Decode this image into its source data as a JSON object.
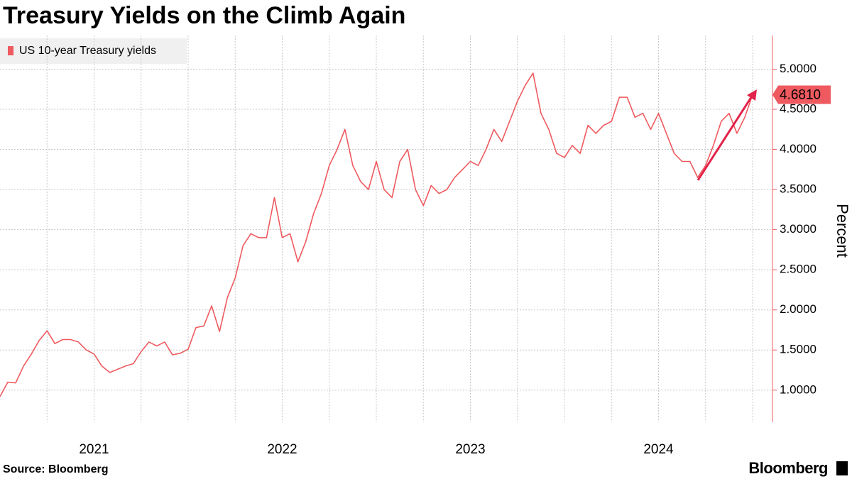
{
  "chart_data": {
    "type": "line",
    "title": "Treasury Yields on the Climb Again",
    "source": "Source: Bloomberg",
    "brand": "Bloomberg",
    "y_label": "Percent",
    "categories": [
      null,
      null,
      null,
      null,
      null,
      null,
      null,
      null,
      null,
      null,
      null,
      null,
      "2021",
      null,
      null,
      null,
      null,
      null,
      null,
      null,
      null,
      null,
      null,
      null,
      null,
      null,
      null,
      null,
      null,
      null,
      null,
      null,
      null,
      null,
      null,
      null,
      "2022",
      null,
      null,
      null,
      null,
      null,
      null,
      null,
      null,
      null,
      null,
      null,
      null,
      null,
      null,
      null,
      null,
      null,
      null,
      null,
      null,
      null,
      null,
      null,
      "2023",
      null,
      null,
      null,
      null,
      null,
      null,
      null,
      null,
      null,
      null,
      null,
      null,
      null,
      null,
      null,
      null,
      null,
      null,
      null,
      null,
      null,
      null,
      null,
      "2024",
      null,
      null,
      null,
      null,
      null,
      null,
      null,
      null,
      null,
      null,
      null,
      null
    ],
    "series": [
      {
        "name": "US 10-year Treasury yields",
        "color": "#ee5a5f",
        "values": [
          0.92,
          1.1,
          1.09,
          1.3,
          1.45,
          1.62,
          1.74,
          1.58,
          1.63,
          1.63,
          1.6,
          1.5,
          1.45,
          1.3,
          1.22,
          1.26,
          1.3,
          1.33,
          1.48,
          1.6,
          1.55,
          1.6,
          1.44,
          1.46,
          1.51,
          1.78,
          1.8,
          2.05,
          1.73,
          2.15,
          2.4,
          2.8,
          2.95,
          2.9,
          2.9,
          3.4,
          2.9,
          2.95,
          2.6,
          2.85,
          3.2,
          3.45,
          3.8,
          4.0,
          4.25,
          3.8,
          3.6,
          3.5,
          3.85,
          3.5,
          3.4,
          3.85,
          4.0,
          3.5,
          3.3,
          3.55,
          3.45,
          3.5,
          3.65,
          3.75,
          3.85,
          3.8,
          4.0,
          4.25,
          4.1,
          4.35,
          4.6,
          4.8,
          4.95,
          4.45,
          4.25,
          3.95,
          3.9,
          4.05,
          3.95,
          4.3,
          4.2,
          4.3,
          4.35,
          4.65,
          4.65,
          4.4,
          4.45,
          4.25,
          4.45,
          4.2,
          3.95,
          3.85,
          3.85,
          3.65,
          3.8,
          4.05,
          4.35,
          4.45,
          4.2,
          4.4,
          4.681
        ],
        "value_labels": [
          null,
          null,
          null,
          null,
          null,
          null,
          null,
          null,
          null,
          null,
          null,
          null,
          null,
          null,
          null,
          null,
          null,
          null,
          null,
          null,
          null,
          null,
          null,
          null,
          null,
          null,
          null,
          null,
          null,
          null,
          null,
          null,
          null,
          null,
          null,
          null,
          null,
          null,
          null,
          null,
          null,
          null,
          null,
          null,
          null,
          null,
          null,
          null,
          null,
          null,
          null,
          null,
          null,
          null,
          null,
          null,
          null,
          null,
          null,
          null,
          null,
          null,
          null,
          null,
          null,
          null,
          null,
          null,
          null,
          null,
          null,
          null,
          null,
          null,
          null,
          null,
          null,
          null,
          null,
          null,
          null,
          null,
          null,
          null,
          null,
          null,
          null,
          null,
          null,
          null,
          null,
          null,
          null,
          null,
          null,
          null,
          "4.6810"
        ]
      }
    ],
    "ylim": [
      0.6,
      5.42
    ],
    "yticks": [
      {
        "value": 1,
        "label": "1.0000"
      },
      {
        "value": 1.5,
        "label": "1.5000"
      },
      {
        "value": 2,
        "label": "2.0000"
      },
      {
        "value": 2.5,
        "label": "2.5000"
      },
      {
        "value": 3,
        "label": "3.0000"
      },
      {
        "value": 3.5,
        "label": "3.5000"
      },
      {
        "value": 4,
        "label": "4.0000"
      },
      {
        "value": 4.5,
        "label": "4.5000"
      },
      {
        "value": 5,
        "label": "5.0000"
      }
    ],
    "grid": true,
    "legend": "top-left"
  }
}
